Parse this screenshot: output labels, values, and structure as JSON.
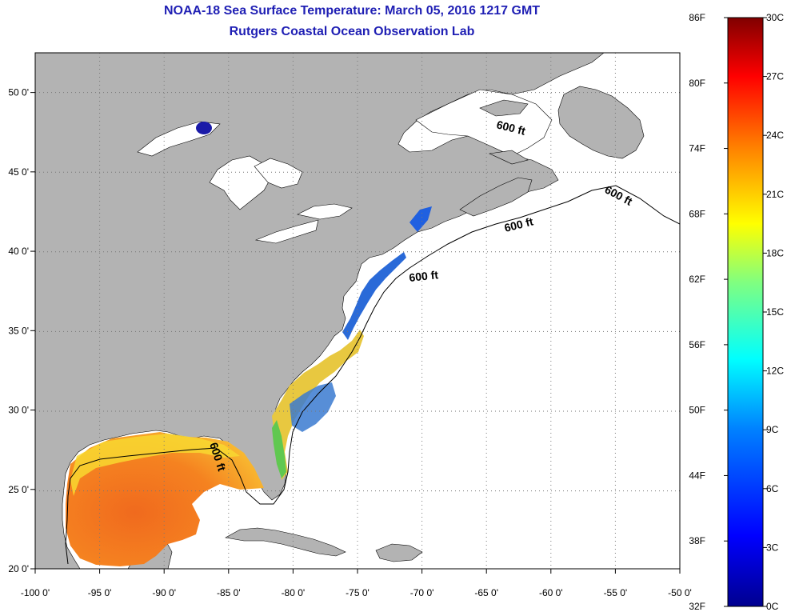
{
  "title": {
    "line1": "NOAA-18 Sea Surface Temperature:  March 05, 2016 1217 GMT",
    "line2": "Rutgers Coastal Ocean Observation Lab"
  },
  "map": {
    "lon_range": [
      -100,
      -50
    ],
    "lat_range": [
      20,
      52.5
    ],
    "x_ticks": [
      "-100 0'",
      "-95 0'",
      "-90 0'",
      "-85 0'",
      "-80 0'",
      "-75 0'",
      "-70 0'",
      "-65 0'",
      "-60 0'",
      "-55 0'",
      "-50 0'"
    ],
    "y_ticks": [
      "50 0'",
      "45 0'",
      "40 0'",
      "35 0'",
      "30 0'",
      "25 0'",
      "20 0'"
    ],
    "contour_label": "600 ft",
    "land_color": "#b3b3b3",
    "ocean_color": "#ffffff",
    "grid": "dotted"
  },
  "colorbar": {
    "fahrenheit": [
      "86F",
      "80F",
      "74F",
      "68F",
      "62F",
      "56F",
      "50F",
      "44F",
      "38F",
      "32F"
    ],
    "celsius": [
      "30C",
      "27C",
      "24C",
      "21C",
      "18C",
      "15C",
      "12C",
      "9C",
      "6C",
      "3C",
      "0C"
    ],
    "colors": [
      "#00008f",
      "#0000ff",
      "#0080ff",
      "#00ffff",
      "#80ff80",
      "#ffff00",
      "#ff8000",
      "#ff0000",
      "#800000"
    ]
  }
}
